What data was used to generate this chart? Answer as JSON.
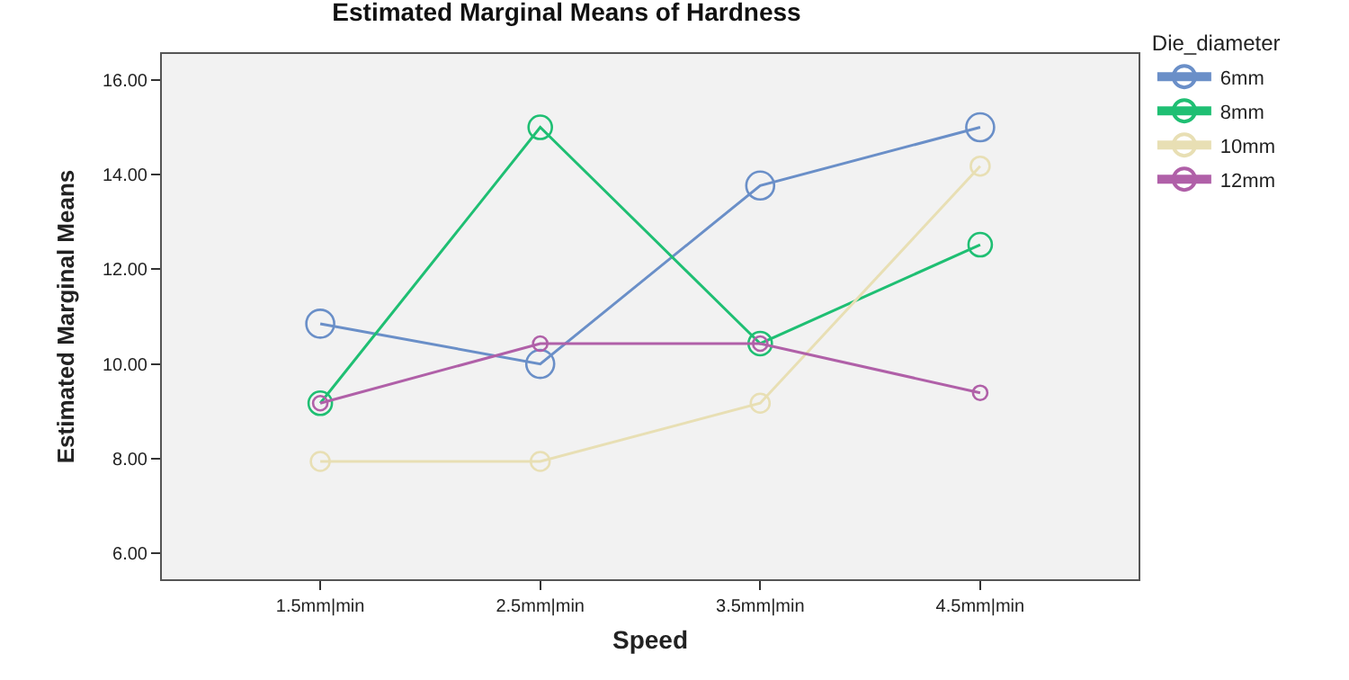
{
  "chart_data": {
    "type": "line",
    "title": "Estimated Marginal Means of Hardness",
    "xlabel": "Speed",
    "ylabel": "Estimated Marginal Means",
    "legend_title": "Die_diameter",
    "categories": [
      "1.5mm|min",
      "2.5mm|min",
      "3.5mm|min",
      "4.5mm|min"
    ],
    "series": [
      {
        "name": "6mm",
        "color": "#6a8fc8",
        "values": [
          10.85,
          10.0,
          13.77,
          15.0
        ]
      },
      {
        "name": "8mm",
        "color": "#1fbf73",
        "values": [
          9.17,
          15.0,
          10.43,
          12.52
        ]
      },
      {
        "name": "10mm",
        "color": "#e8dfb4",
        "values": [
          7.94,
          7.94,
          9.17,
          14.18
        ]
      },
      {
        "name": "12mm",
        "color": "#b060a8",
        "values": [
          9.17,
          10.43,
          10.43,
          9.39
        ]
      }
    ],
    "ylim": [
      5.45,
      16.55
    ],
    "yticks": [
      {
        "value": 6,
        "label": "6.00"
      },
      {
        "value": 8,
        "label": "8.00"
      },
      {
        "value": 10,
        "label": "10.00"
      },
      {
        "value": 12,
        "label": "12.00"
      },
      {
        "value": 14,
        "label": "14.00"
      },
      {
        "value": 16,
        "label": "16.00"
      }
    ],
    "grid": false,
    "legend": "top right",
    "marker": "circle",
    "line_style": "solid"
  }
}
